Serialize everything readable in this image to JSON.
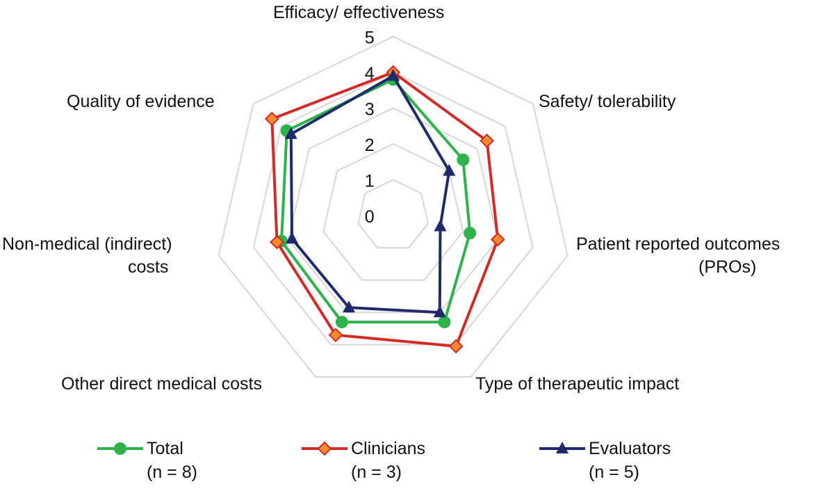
{
  "chart_data": {
    "type": "radar",
    "axes": [
      "Efficacy/ effectiveness",
      "Safety/ tolerability",
      "Patient reported outcomes (PROs)",
      "Type of therapeutic impact",
      "Other direct medical costs",
      "Non-medical (indirect) costs",
      "Quality of evidence"
    ],
    "axis_label_lines": [
      [
        "Efficacy/ effectiveness"
      ],
      [
        "Safety/ tolerability"
      ],
      [
        "Patient reported outcomes",
        "(PROs)"
      ],
      [
        "Type of therapeutic impact"
      ],
      [
        "Other direct medical costs"
      ],
      [
        "Non-medical (indirect)",
        "costs"
      ],
      [
        "Quality of evidence"
      ]
    ],
    "rlim": [
      0,
      5
    ],
    "ticks": [
      "0",
      "1",
      "2",
      "3",
      "4",
      "5"
    ],
    "grid": true,
    "legend_position": "bottom",
    "series": [
      {
        "name": "Total",
        "n_label": "(n = 8)",
        "color": "#2db34a",
        "marker": "circle",
        "values": [
          3.8,
          2.5,
          2.2,
          3.3,
          3.3,
          3.2,
          3.8
        ]
      },
      {
        "name": "Clinicians",
        "n_label": "(n = 3)",
        "color": "#d42a26",
        "marker_fill": "#f28a2e",
        "marker": "diamond",
        "values": [
          4.0,
          3.35,
          3.0,
          4.05,
          3.7,
          3.33,
          4.33
        ]
      },
      {
        "name": "Evaluators",
        "n_label": "(n = 5)",
        "color": "#1f2a6b",
        "marker": "triangle",
        "values": [
          3.9,
          2.0,
          1.35,
          3.0,
          2.85,
          2.9,
          3.65
        ]
      }
    ]
  }
}
